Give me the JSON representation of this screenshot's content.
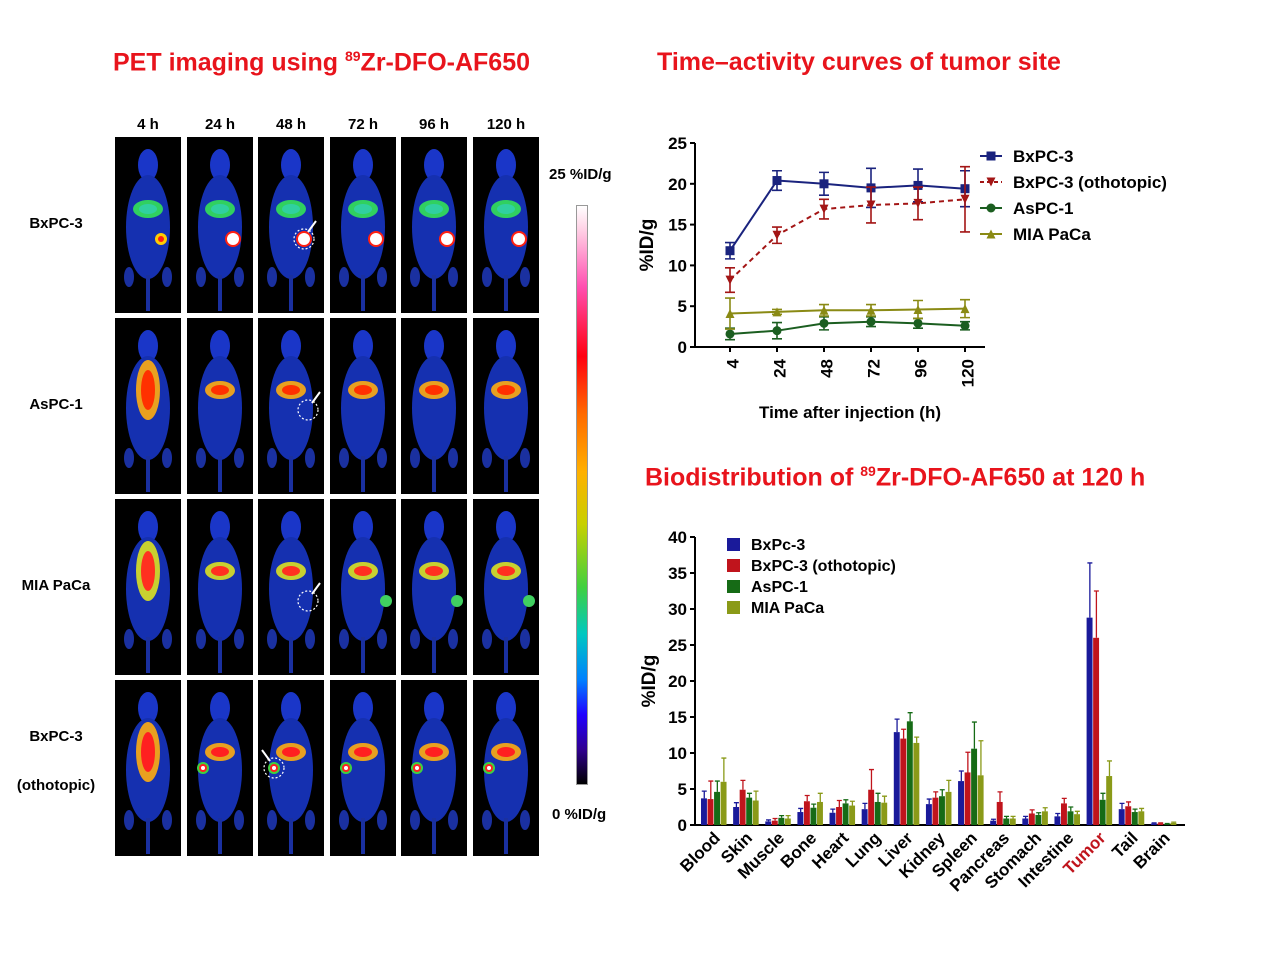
{
  "pet": {
    "title_prefix": "PET imaging using ",
    "title_sup": "89",
    "title_suffix": "Zr-DFO-AF650",
    "timepoints": [
      "4 h",
      "24 h",
      "48 h",
      "72 h",
      "96 h",
      "120 h"
    ],
    "rows": [
      {
        "label": "BxPC-3",
        "label2": ""
      },
      {
        "label": "AsPC-1",
        "label2": ""
      },
      {
        "label": "MIA PaCa",
        "label2": ""
      },
      {
        "label": "BxPC-3",
        "label2": "(othotopic)"
      }
    ],
    "scale_max": "25 %ID/g",
    "scale_min": "0 %ID/g"
  },
  "chart_data": [
    {
      "type": "line",
      "title": "Time–activity curves of tumor site",
      "xlabel": "Time after injection (h)",
      "ylabel": "%ID/g",
      "x": [
        "4",
        "24",
        "48",
        "72",
        "96",
        "120"
      ],
      "ylim": [
        0,
        25
      ],
      "yticks": [
        "0",
        "5",
        "10",
        "15",
        "20",
        "25"
      ],
      "legend": "top-right",
      "series": [
        {
          "name": "BxPC-3",
          "values": [
            11.8,
            20.4,
            20.0,
            19.5,
            19.8,
            19.4
          ],
          "errors": [
            1.0,
            1.2,
            1.4,
            2.4,
            2.0,
            2.2
          ],
          "color": "#1a237e",
          "marker": "square",
          "dash": false
        },
        {
          "name": "BxPC-3 (othotopic)",
          "values": [
            8.2,
            13.7,
            16.9,
            17.4,
            17.6,
            18.1
          ],
          "errors": [
            1.5,
            1.0,
            1.2,
            2.2,
            2.0,
            4.0
          ],
          "color": "#a31515",
          "marker": "triangle-down",
          "dash": true
        },
        {
          "name": "AsPC-1",
          "values": [
            1.6,
            2.0,
            2.9,
            3.1,
            2.9,
            2.6
          ],
          "errors": [
            0.7,
            1.0,
            0.8,
            0.6,
            0.6,
            0.5
          ],
          "color": "#1b5e20",
          "marker": "circle",
          "dash": false
        },
        {
          "name": "MIA PaCa",
          "values": [
            4.1,
            4.3,
            4.5,
            4.5,
            4.6,
            4.7
          ],
          "errors": [
            1.9,
            0.3,
            0.7,
            0.7,
            1.1,
            1.1
          ],
          "color": "#8a8a14",
          "marker": "triangle",
          "dash": false
        }
      ]
    },
    {
      "type": "bar",
      "title_prefix": "Biodistribution of ",
      "title_sup": "89",
      "title_suffix": "Zr-DFO-AF650 at 120 h",
      "ylabel": "%ID/g",
      "ylim": [
        0,
        40
      ],
      "yticks": [
        "0",
        "5",
        "10",
        "15",
        "20",
        "25",
        "30",
        "35",
        "40"
      ],
      "legend": "top-left",
      "categories": [
        "Blood",
        "Skin",
        "Muscle",
        "Bone",
        "Heart",
        "Lung",
        "Liver",
        "Kidney",
        "Spleen",
        "Pancreas",
        "Stomach",
        "Intestine",
        "Tumor",
        "Tail",
        "Brain"
      ],
      "highlight_category": "Tumor",
      "highlight_color": "#c0141c",
      "series": [
        {
          "name": "BxPc-3",
          "color": "#1a1a9a",
          "values": [
            3.7,
            2.5,
            0.5,
            1.8,
            1.7,
            2.2,
            12.9,
            2.9,
            6.1,
            0.6,
            0.9,
            1.2,
            28.8,
            2.2,
            0.2
          ],
          "errors": [
            1.0,
            0.6,
            0.2,
            0.5,
            0.5,
            0.8,
            1.8,
            0.7,
            1.4,
            0.2,
            0.3,
            0.4,
            7.6,
            0.8,
            0.1
          ]
        },
        {
          "name": "BxPC-3 (othotopic)",
          "color": "#c0141c",
          "values": [
            3.6,
            4.9,
            0.6,
            3.3,
            2.5,
            4.9,
            12.0,
            3.8,
            7.3,
            3.2,
            1.6,
            3.0,
            26.0,
            2.6,
            0.2
          ],
          "errors": [
            2.5,
            1.3,
            0.3,
            0.8,
            0.9,
            2.8,
            1.3,
            0.8,
            2.8,
            1.4,
            0.5,
            0.7,
            6.5,
            0.6,
            0.1
          ]
        },
        {
          "name": "AsPC-1",
          "color": "#166b16",
          "values": [
            4.6,
            3.8,
            1.0,
            2.4,
            3.0,
            3.2,
            14.4,
            4.0,
            10.6,
            0.9,
            1.4,
            1.9,
            3.5,
            1.8,
            0.1
          ],
          "errors": [
            1.5,
            0.6,
            0.3,
            0.5,
            0.5,
            1.2,
            1.2,
            0.9,
            3.7,
            0.3,
            0.3,
            0.6,
            0.9,
            0.4,
            0.1
          ]
        },
        {
          "name": "MIA PaCa",
          "color": "#8a9a18",
          "values": [
            6.0,
            3.4,
            0.9,
            3.2,
            2.7,
            3.1,
            11.4,
            4.6,
            6.9,
            0.9,
            1.9,
            1.5,
            6.8,
            1.9,
            0.3
          ],
          "errors": [
            3.3,
            1.3,
            0.4,
            1.2,
            0.6,
            0.9,
            0.8,
            1.6,
            4.8,
            0.3,
            0.5,
            0.4,
            2.1,
            0.4,
            0.1
          ]
        }
      ]
    }
  ]
}
